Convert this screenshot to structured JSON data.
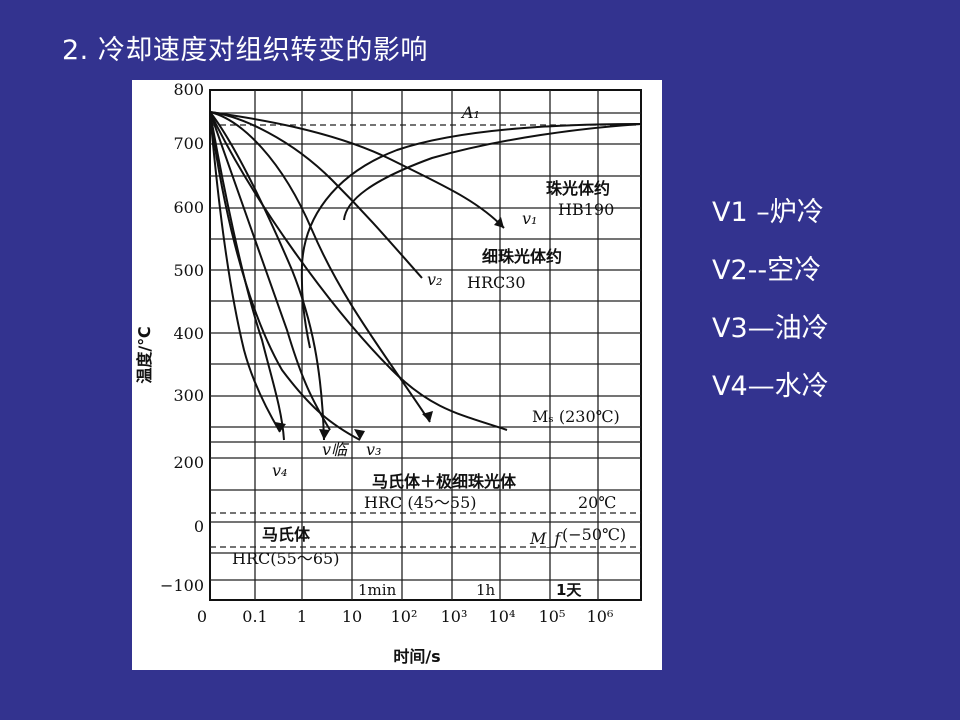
{
  "slide": {
    "title": "2. 冷却速度对组织转变的影响"
  },
  "legend": {
    "items": [
      {
        "label": "V1 –炉冷"
      },
      {
        "label": "V2--空冷"
      },
      {
        "label": "V3—油冷"
      },
      {
        "label": "V4—水冷"
      }
    ]
  },
  "chart_data": {
    "type": "line",
    "ylabel": "温度/℃",
    "xlabel": "时间/s",
    "y_ticks": [
      "800",
      "700",
      "600",
      "500",
      "400",
      "300",
      "200",
      "0",
      "−100"
    ],
    "x_ticks": [
      "0",
      "0.1",
      "1",
      "10",
      "10²",
      "10³",
      "10⁴",
      "10⁵",
      "10⁶"
    ],
    "time_marks": [
      "1min",
      "1h",
      "1天"
    ],
    "curve_labels": {
      "a1": "A₁",
      "v1": "v₁",
      "v2": "v₂",
      "v3": "v₃",
      "v4": "v₄",
      "vcrit": "v临"
    },
    "annotations": {
      "pearlite": "珠光体约",
      "pearlite_hb": "HB190",
      "fine_pearlite": "细珠光体约",
      "fine_pearlite_hrc": "HRC30",
      "ms": "Mₛ (230℃)",
      "mart_fine": "马氏体＋极细珠光体",
      "mart_fine_hrc": "HRC (45～55)",
      "t20": "20℃",
      "mf": "M_f",
      "mf_val": "(−50℃)",
      "martensite": "马氏体",
      "martensite_hrc": "HRC(55～65)"
    },
    "critical_temperatures": {
      "A1": 727,
      "Ms": 230,
      "Mf": -50,
      "room": 20
    },
    "grid": true
  }
}
